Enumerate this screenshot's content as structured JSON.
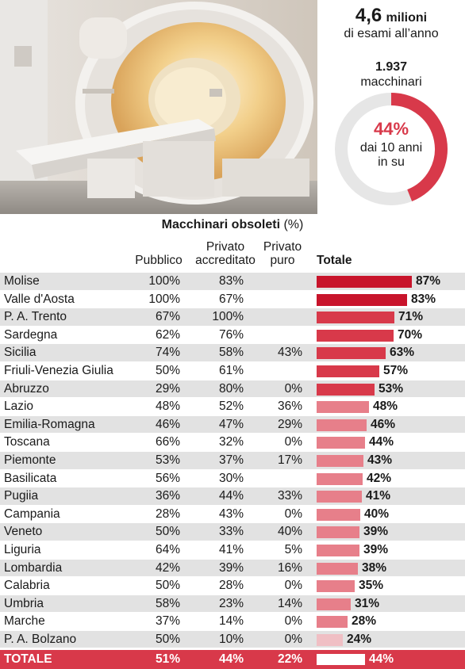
{
  "stats": {
    "exams_value": "4,6",
    "exams_unit": "milioni",
    "exams_label": "di esami all’anno",
    "machines_value": "1.937",
    "machines_label": "macchinari",
    "donut_percent": "44%",
    "donut_fraction": 0.44,
    "donut_label_1": "dai 10 anni",
    "donut_label_2": "in su",
    "accent_color": "#d8394a"
  },
  "chart_data": {
    "type": "table",
    "title": "Macchinari obsoleti",
    "title_unit": "(%)",
    "columns": [
      "Pubblico",
      "Privato accreditato",
      "Privato puro",
      "Totale"
    ],
    "column_labels": {
      "pubblico": "Pubblico",
      "accreditato_1": "Privato",
      "accreditato_2": "accreditato",
      "puro_1": "Privato",
      "puro_2": "puro",
      "totale": "Totale"
    },
    "rows": [
      {
        "region": "Molise",
        "pubblico": "100%",
        "accreditato": "83%",
        "puro": "",
        "totale": "87%",
        "value": 87
      },
      {
        "region": "Valle d'Aosta",
        "pubblico": "100%",
        "accreditato": "67%",
        "puro": "",
        "totale": "83%",
        "value": 83
      },
      {
        "region": "P. A. Trento",
        "pubblico": "67%",
        "accreditato": "100%",
        "puro": "",
        "totale": "71%",
        "value": 71
      },
      {
        "region": "Sardegna",
        "pubblico": "62%",
        "accreditato": "76%",
        "puro": "",
        "totale": "70%",
        "value": 70
      },
      {
        "region": "Sicilia",
        "pubblico": "74%",
        "accreditato": "58%",
        "puro": "43%",
        "totale": "63%",
        "value": 63
      },
      {
        "region": "Friuli-Venezia Giulia",
        "pubblico": "50%",
        "accreditato": "61%",
        "puro": "",
        "totale": "57%",
        "value": 57
      },
      {
        "region": "Abruzzo",
        "pubblico": "29%",
        "accreditato": "80%",
        "puro": "0%",
        "totale": "53%",
        "value": 53
      },
      {
        "region": "Lazio",
        "pubblico": "48%",
        "accreditato": "52%",
        "puro": "36%",
        "totale": "48%",
        "value": 48
      },
      {
        "region": "Emilia-Romagna",
        "pubblico": "46%",
        "accreditato": "47%",
        "puro": "29%",
        "totale": "46%",
        "value": 46
      },
      {
        "region": "Toscana",
        "pubblico": "66%",
        "accreditato": "32%",
        "puro": "0%",
        "totale": "44%",
        "value": 44
      },
      {
        "region": "Piemonte",
        "pubblico": "53%",
        "accreditato": "37%",
        "puro": "17%",
        "totale": "43%",
        "value": 43
      },
      {
        "region": "Basilicata",
        "pubblico": "56%",
        "accreditato": "30%",
        "puro": "",
        "totale": "42%",
        "value": 42
      },
      {
        "region": "Pugiia",
        "pubblico": "36%",
        "accreditato": "44%",
        "puro": "33%",
        "totale": "41%",
        "value": 41
      },
      {
        "region": "Campania",
        "pubblico": "28%",
        "accreditato": "43%",
        "puro": "0%",
        "totale": "40%",
        "value": 40
      },
      {
        "region": "Veneto",
        "pubblico": "50%",
        "accreditato": "33%",
        "puro": "40%",
        "totale": "39%",
        "value": 39
      },
      {
        "region": "Liguria",
        "pubblico": "64%",
        "accreditato": "41%",
        "puro": "5%",
        "totale": "39%",
        "value": 39
      },
      {
        "region": "Lombardia",
        "pubblico": "42%",
        "accreditato": "39%",
        "puro": "16%",
        "totale": "38%",
        "value": 38
      },
      {
        "region": "Calabria",
        "pubblico": "50%",
        "accreditato": "28%",
        "puro": "0%",
        "totale": "35%",
        "value": 35
      },
      {
        "region": "Umbria",
        "pubblico": "58%",
        "accreditato": "23%",
        "puro": "14%",
        "totale": "31%",
        "value": 31
      },
      {
        "region": "Marche",
        "pubblico": "37%",
        "accreditato": "14%",
        "puro": "0%",
        "totale": "28%",
        "value": 28
      },
      {
        "region": "P. A. Bolzano",
        "pubblico": "50%",
        "accreditato": "10%",
        "puro": "0%",
        "totale": "24%",
        "value": 24
      }
    ],
    "total": {
      "region": "TOTALE",
      "pubblico": "51%",
      "accreditato": "44%",
      "puro": "22%",
      "totale": "44%",
      "value": 44
    },
    "bar_colors": {
      "high": "#c8142b",
      "mid": "#d8394a",
      "low": "#e77f8a",
      "lowest": "#f0bfc4"
    },
    "row_stripe_color": "#e2e2e2"
  }
}
